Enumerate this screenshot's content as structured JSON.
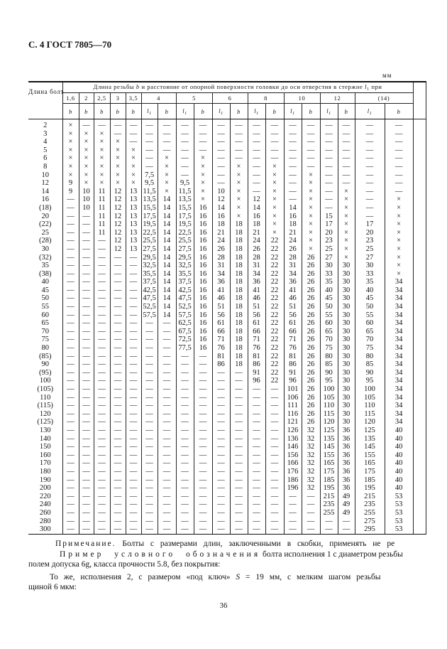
{
  "page_title": "С. 4 ГОСТ 7805—70",
  "unit": "мм",
  "table": {
    "length_header": {
      "text": "Длина болта",
      "symbol": "l"
    },
    "group_header": {
      "part1": "Длина резьбы",
      "b": "b",
      "part2": "и расстояние от опорной поверхности головки до оси отверстия в стержне",
      "l1": "l",
      "l1_sub": "1",
      "part3": "при"
    },
    "diameters": [
      "1,6",
      "2",
      "2,5",
      "3",
      "3,5",
      "4",
      "5",
      "6",
      "8",
      "10",
      "12",
      "(14)"
    ],
    "subheaders": [
      "b",
      "b",
      "b",
      "b",
      "b",
      "l1",
      "b",
      "l1",
      "b",
      "l1",
      "b",
      "l1",
      "b",
      "l1",
      "b",
      "l1",
      "b",
      "l1",
      "b"
    ],
    "rows": [
      [
        "2",
        "×",
        "—",
        "—",
        "—",
        "—",
        "—",
        "—",
        "—",
        "—",
        "—",
        "—",
        "—",
        "—",
        "—",
        "—",
        "—",
        "—",
        "—",
        "—"
      ],
      [
        "3",
        "×",
        "×",
        "×",
        "—",
        "—",
        "—",
        "—",
        "—",
        "—",
        "—",
        "—",
        "—",
        "—",
        "—",
        "—",
        "—",
        "—",
        "—",
        "—"
      ],
      [
        "4",
        "×",
        "×",
        "×",
        "×",
        "—",
        "—",
        "—",
        "—",
        "—",
        "—",
        "—",
        "—",
        "—",
        "—",
        "—",
        "—",
        "—",
        "—",
        "—"
      ],
      [
        "5",
        "×",
        "×",
        "×",
        "×",
        "×",
        "—",
        "—",
        "—",
        "—",
        "—",
        "—",
        "—",
        "—",
        "—",
        "—",
        "—",
        "—",
        "—",
        "—"
      ],
      [
        "6",
        "×",
        "×",
        "×",
        "×",
        "×",
        "—",
        "×",
        "—",
        "×",
        "—",
        "—",
        "—",
        "—",
        "—",
        "—",
        "—",
        "—",
        "—",
        "—"
      ],
      [
        "8",
        "×",
        "×",
        "×",
        "×",
        "×",
        "—",
        "×",
        "—",
        "×",
        "—",
        "×",
        "—",
        "×",
        "—",
        "—",
        "—",
        "—",
        "—",
        "—"
      ],
      [
        "10",
        "×",
        "×",
        "×",
        "×",
        "×",
        "7,5",
        "×",
        "—",
        "×",
        "—",
        "×",
        "—",
        "×",
        "—",
        "×",
        "—",
        "—",
        "—",
        "—"
      ],
      [
        "12",
        "9",
        "×",
        "×",
        "×",
        "×",
        "9,5",
        "×",
        "9,5",
        "×",
        "—",
        "×",
        "—",
        "×",
        "—",
        "×",
        "—",
        "—",
        "—",
        "—"
      ],
      [
        "14",
        "9",
        "10",
        "11",
        "12",
        "13",
        "11,5",
        "×",
        "11,5",
        "×",
        "10",
        "×",
        "—",
        "×",
        "—",
        "×",
        "—",
        "×",
        "—",
        "—"
      ],
      [
        "16",
        "—",
        "10",
        "11",
        "12",
        "13",
        "13,5",
        "14",
        "13,5",
        "×",
        "12",
        "×",
        "12",
        "×",
        "—",
        "×",
        "—",
        "×",
        "—",
        "×"
      ],
      [
        "(18)",
        "—",
        "10",
        "11",
        "12",
        "13",
        "15,5",
        "14",
        "15,5",
        "16",
        "14",
        "×",
        "14",
        "×",
        "14",
        "×",
        "—",
        "×",
        "—",
        "×"
      ],
      [
        "20",
        "—",
        "—",
        "11",
        "12",
        "13",
        "17,5",
        "14",
        "17,5",
        "16",
        "16",
        "×",
        "16",
        "×",
        "16",
        "×",
        "15",
        "×",
        "—",
        "×"
      ],
      [
        "(22)",
        "—",
        "—",
        "11",
        "12",
        "13",
        "19,5",
        "14",
        "19,5",
        "16",
        "18",
        "18",
        "18",
        "×",
        "18",
        "×",
        "17",
        "×",
        "17",
        "×"
      ],
      [
        "25",
        "—",
        "—",
        "11",
        "12",
        "13",
        "22,5",
        "14",
        "22,5",
        "16",
        "21",
        "18",
        "21",
        "×",
        "21",
        "×",
        "20",
        "×",
        "20",
        "×"
      ],
      [
        "(28)",
        "—",
        "—",
        "—",
        "12",
        "13",
        "25,5",
        "14",
        "25,5",
        "16",
        "24",
        "18",
        "24",
        "22",
        "24",
        "×",
        "23",
        "×",
        "23",
        "×"
      ],
      [
        "30",
        "—",
        "—",
        "—",
        "12",
        "13",
        "27,5",
        "14",
        "27,5",
        "16",
        "26",
        "18",
        "26",
        "22",
        "26",
        "×",
        "25",
        "×",
        "25",
        "×"
      ],
      [
        "(32)",
        "—",
        "—",
        "—",
        "—",
        "—",
        "29,5",
        "14",
        "29,5",
        "16",
        "28",
        "18",
        "28",
        "22",
        "28",
        "26",
        "27",
        "×",
        "27",
        "×"
      ],
      [
        "35",
        "—",
        "—",
        "—",
        "—",
        "—",
        "32,5",
        "14",
        "32,5",
        "16",
        "31",
        "18",
        "31",
        "22",
        "31",
        "26",
        "30",
        "30",
        "30",
        "×"
      ],
      [
        "(38)",
        "—",
        "—",
        "—",
        "—",
        "—",
        "35,5",
        "14",
        "35,5",
        "16",
        "34",
        "18",
        "34",
        "22",
        "34",
        "26",
        "33",
        "30",
        "33",
        "×"
      ],
      [
        "40",
        "—",
        "—",
        "—",
        "—",
        "—",
        "37,5",
        "14",
        "37,5",
        "16",
        "36",
        "18",
        "36",
        "22",
        "36",
        "26",
        "35",
        "30",
        "35",
        "34"
      ],
      [
        "45",
        "—",
        "—",
        "—",
        "—",
        "—",
        "42,5",
        "14",
        "42,5",
        "16",
        "41",
        "18",
        "41",
        "22",
        "41",
        "26",
        "40",
        "30",
        "40",
        "34"
      ],
      [
        "50",
        "—",
        "—",
        "—",
        "—",
        "—",
        "47,5",
        "14",
        "47,5",
        "16",
        "46",
        "18",
        "46",
        "22",
        "46",
        "26",
        "45",
        "30",
        "45",
        "34"
      ],
      [
        "55",
        "—",
        "—",
        "—",
        "—",
        "—",
        "52,5",
        "14",
        "52,5",
        "16",
        "51",
        "18",
        "51",
        "22",
        "51",
        "26",
        "50",
        "30",
        "50",
        "34"
      ],
      [
        "60",
        "—",
        "—",
        "—",
        "—",
        "—",
        "57,5",
        "14",
        "57,5",
        "16",
        "56",
        "18",
        "56",
        "22",
        "56",
        "26",
        "55",
        "30",
        "55",
        "34"
      ],
      [
        "65",
        "—",
        "—",
        "—",
        "—",
        "—",
        "—",
        "—",
        "62,5",
        "16",
        "61",
        "18",
        "61",
        "22",
        "61",
        "26",
        "60",
        "30",
        "60",
        "34"
      ],
      [
        "70",
        "—",
        "—",
        "—",
        "—",
        "—",
        "—",
        "—",
        "67,5",
        "16",
        "66",
        "18",
        "66",
        "22",
        "66",
        "26",
        "65",
        "30",
        "65",
        "34"
      ],
      [
        "75",
        "—",
        "—",
        "—",
        "—",
        "—",
        "—",
        "—",
        "72,5",
        "16",
        "71",
        "18",
        "71",
        "22",
        "71",
        "26",
        "70",
        "30",
        "70",
        "34"
      ],
      [
        "80",
        "—",
        "—",
        "—",
        "—",
        "—",
        "—",
        "—",
        "77,5",
        "16",
        "76",
        "18",
        "76",
        "22",
        "76",
        "26",
        "75",
        "30",
        "75",
        "34"
      ],
      [
        "(85)",
        "—",
        "—",
        "—",
        "—",
        "—",
        "—",
        "—",
        "—",
        "—",
        "81",
        "18",
        "81",
        "22",
        "81",
        "26",
        "80",
        "30",
        "80",
        "34"
      ],
      [
        "90",
        "—",
        "—",
        "—",
        "—",
        "—",
        "—",
        "—",
        "—",
        "—",
        "86",
        "18",
        "86",
        "22",
        "86",
        "26",
        "85",
        "30",
        "85",
        "34"
      ],
      [
        "(95)",
        "—",
        "—",
        "—",
        "—",
        "—",
        "—",
        "—",
        "—",
        "—",
        "—",
        "—",
        "91",
        "22",
        "91",
        "26",
        "90",
        "30",
        "90",
        "34"
      ],
      [
        "100",
        "—",
        "—",
        "—",
        "—",
        "—",
        "—",
        "—",
        "—",
        "—",
        "—",
        "—",
        "96",
        "22",
        "96",
        "26",
        "95",
        "30",
        "95",
        "34"
      ],
      [
        "(105)",
        "—",
        "—",
        "—",
        "—",
        "—",
        "—",
        "—",
        "—",
        "—",
        "—",
        "—",
        "—",
        "—",
        "101",
        "26",
        "100",
        "30",
        "100",
        "34"
      ],
      [
        "110",
        "—",
        "—",
        "—",
        "—",
        "—",
        "—",
        "—",
        "—",
        "—",
        "—",
        "—",
        "—",
        "—",
        "106",
        "26",
        "105",
        "30",
        "105",
        "34"
      ],
      [
        "(115)",
        "—",
        "—",
        "—",
        "—",
        "—",
        "—",
        "—",
        "—",
        "—",
        "—",
        "—",
        "—",
        "—",
        "111",
        "26",
        "110",
        "30",
        "110",
        "34"
      ],
      [
        "120",
        "—",
        "—",
        "—",
        "—",
        "—",
        "—",
        "—",
        "—",
        "—",
        "—",
        "—",
        "—",
        "—",
        "116",
        "26",
        "115",
        "30",
        "115",
        "34"
      ],
      [
        "(125)",
        "—",
        "—",
        "—",
        "—",
        "—",
        "—",
        "—",
        "—",
        "—",
        "—",
        "—",
        "—",
        "—",
        "121",
        "26",
        "120",
        "30",
        "120",
        "34"
      ],
      [
        "130",
        "—",
        "—",
        "—",
        "—",
        "—",
        "—",
        "—",
        "—",
        "—",
        "—",
        "—",
        "—",
        "—",
        "126",
        "32",
        "125",
        "36",
        "125",
        "40"
      ],
      [
        "140",
        "—",
        "—",
        "—",
        "—",
        "—",
        "—",
        "—",
        "—",
        "—",
        "—",
        "—",
        "—",
        "—",
        "136",
        "32",
        "135",
        "36",
        "135",
        "40"
      ],
      [
        "150",
        "—",
        "—",
        "—",
        "—",
        "—",
        "—",
        "—",
        "—",
        "—",
        "—",
        "—",
        "—",
        "—",
        "146",
        "32",
        "145",
        "36",
        "145",
        "40"
      ],
      [
        "160",
        "—",
        "—",
        "—",
        "—",
        "—",
        "—",
        "—",
        "—",
        "—",
        "—",
        "—",
        "—",
        "—",
        "156",
        "32",
        "155",
        "36",
        "155",
        "40"
      ],
      [
        "170",
        "—",
        "—",
        "—",
        "—",
        "—",
        "—",
        "—",
        "—",
        "—",
        "—",
        "—",
        "—",
        "—",
        "166",
        "32",
        "165",
        "36",
        "165",
        "40"
      ],
      [
        "180",
        "—",
        "—",
        "—",
        "—",
        "—",
        "—",
        "—",
        "—",
        "—",
        "—",
        "—",
        "—",
        "—",
        "176",
        "32",
        "175",
        "36",
        "175",
        "40"
      ],
      [
        "190",
        "—",
        "—",
        "—",
        "—",
        "—",
        "—",
        "—",
        "—",
        "—",
        "—",
        "—",
        "—",
        "—",
        "186",
        "32",
        "185",
        "36",
        "185",
        "40"
      ],
      [
        "200",
        "—",
        "—",
        "—",
        "—",
        "—",
        "—",
        "—",
        "—",
        "—",
        "—",
        "—",
        "—",
        "—",
        "196",
        "32",
        "195",
        "36",
        "195",
        "40"
      ],
      [
        "220",
        "—",
        "—",
        "—",
        "—",
        "—",
        "—",
        "—",
        "—",
        "—",
        "—",
        "—",
        "—",
        "—",
        "—",
        "—",
        "215",
        "49",
        "215",
        "53"
      ],
      [
        "240",
        "—",
        "—",
        "—",
        "—",
        "—",
        "—",
        "—",
        "—",
        "—",
        "—",
        "—",
        "—",
        "—",
        "—",
        "—",
        "235",
        "49",
        "235",
        "53"
      ],
      [
        "260",
        "—",
        "—",
        "—",
        "—",
        "—",
        "—",
        "—",
        "—",
        "—",
        "—",
        "—",
        "—",
        "—",
        "—",
        "—",
        "255",
        "49",
        "255",
        "53"
      ],
      [
        "280",
        "—",
        "—",
        "—",
        "—",
        "—",
        "—",
        "—",
        "—",
        "—",
        "—",
        "—",
        "—",
        "—",
        "—",
        "—",
        "—",
        "—",
        "275",
        "53"
      ],
      [
        "300",
        "—",
        "—",
        "—",
        "—",
        "—",
        "—",
        "—",
        "—",
        "—",
        "—",
        "—",
        "—",
        "—",
        "—",
        "—",
        "—",
        "—",
        "295",
        "53"
      ]
    ]
  },
  "notes": {
    "note_label": "Примечание.",
    "note_text": "Болты с размерами длин, заключенными в скобки, применять не ре",
    "example_label": "Пример условного обозначения",
    "example_text": "болта исполнения 1 с диаметром резьбы",
    "example_line2": "полем допуска 6g, класса прочности 5.8, без покрытия:",
    "same_text_1": "То же, исполнения 2, с размером «под ключ»",
    "same_S": "S",
    "same_text_2": "= 19 мм, с мелким шагом резьбы",
    "same_line2": "щиной 6 мкм:"
  },
  "page_number": "36"
}
